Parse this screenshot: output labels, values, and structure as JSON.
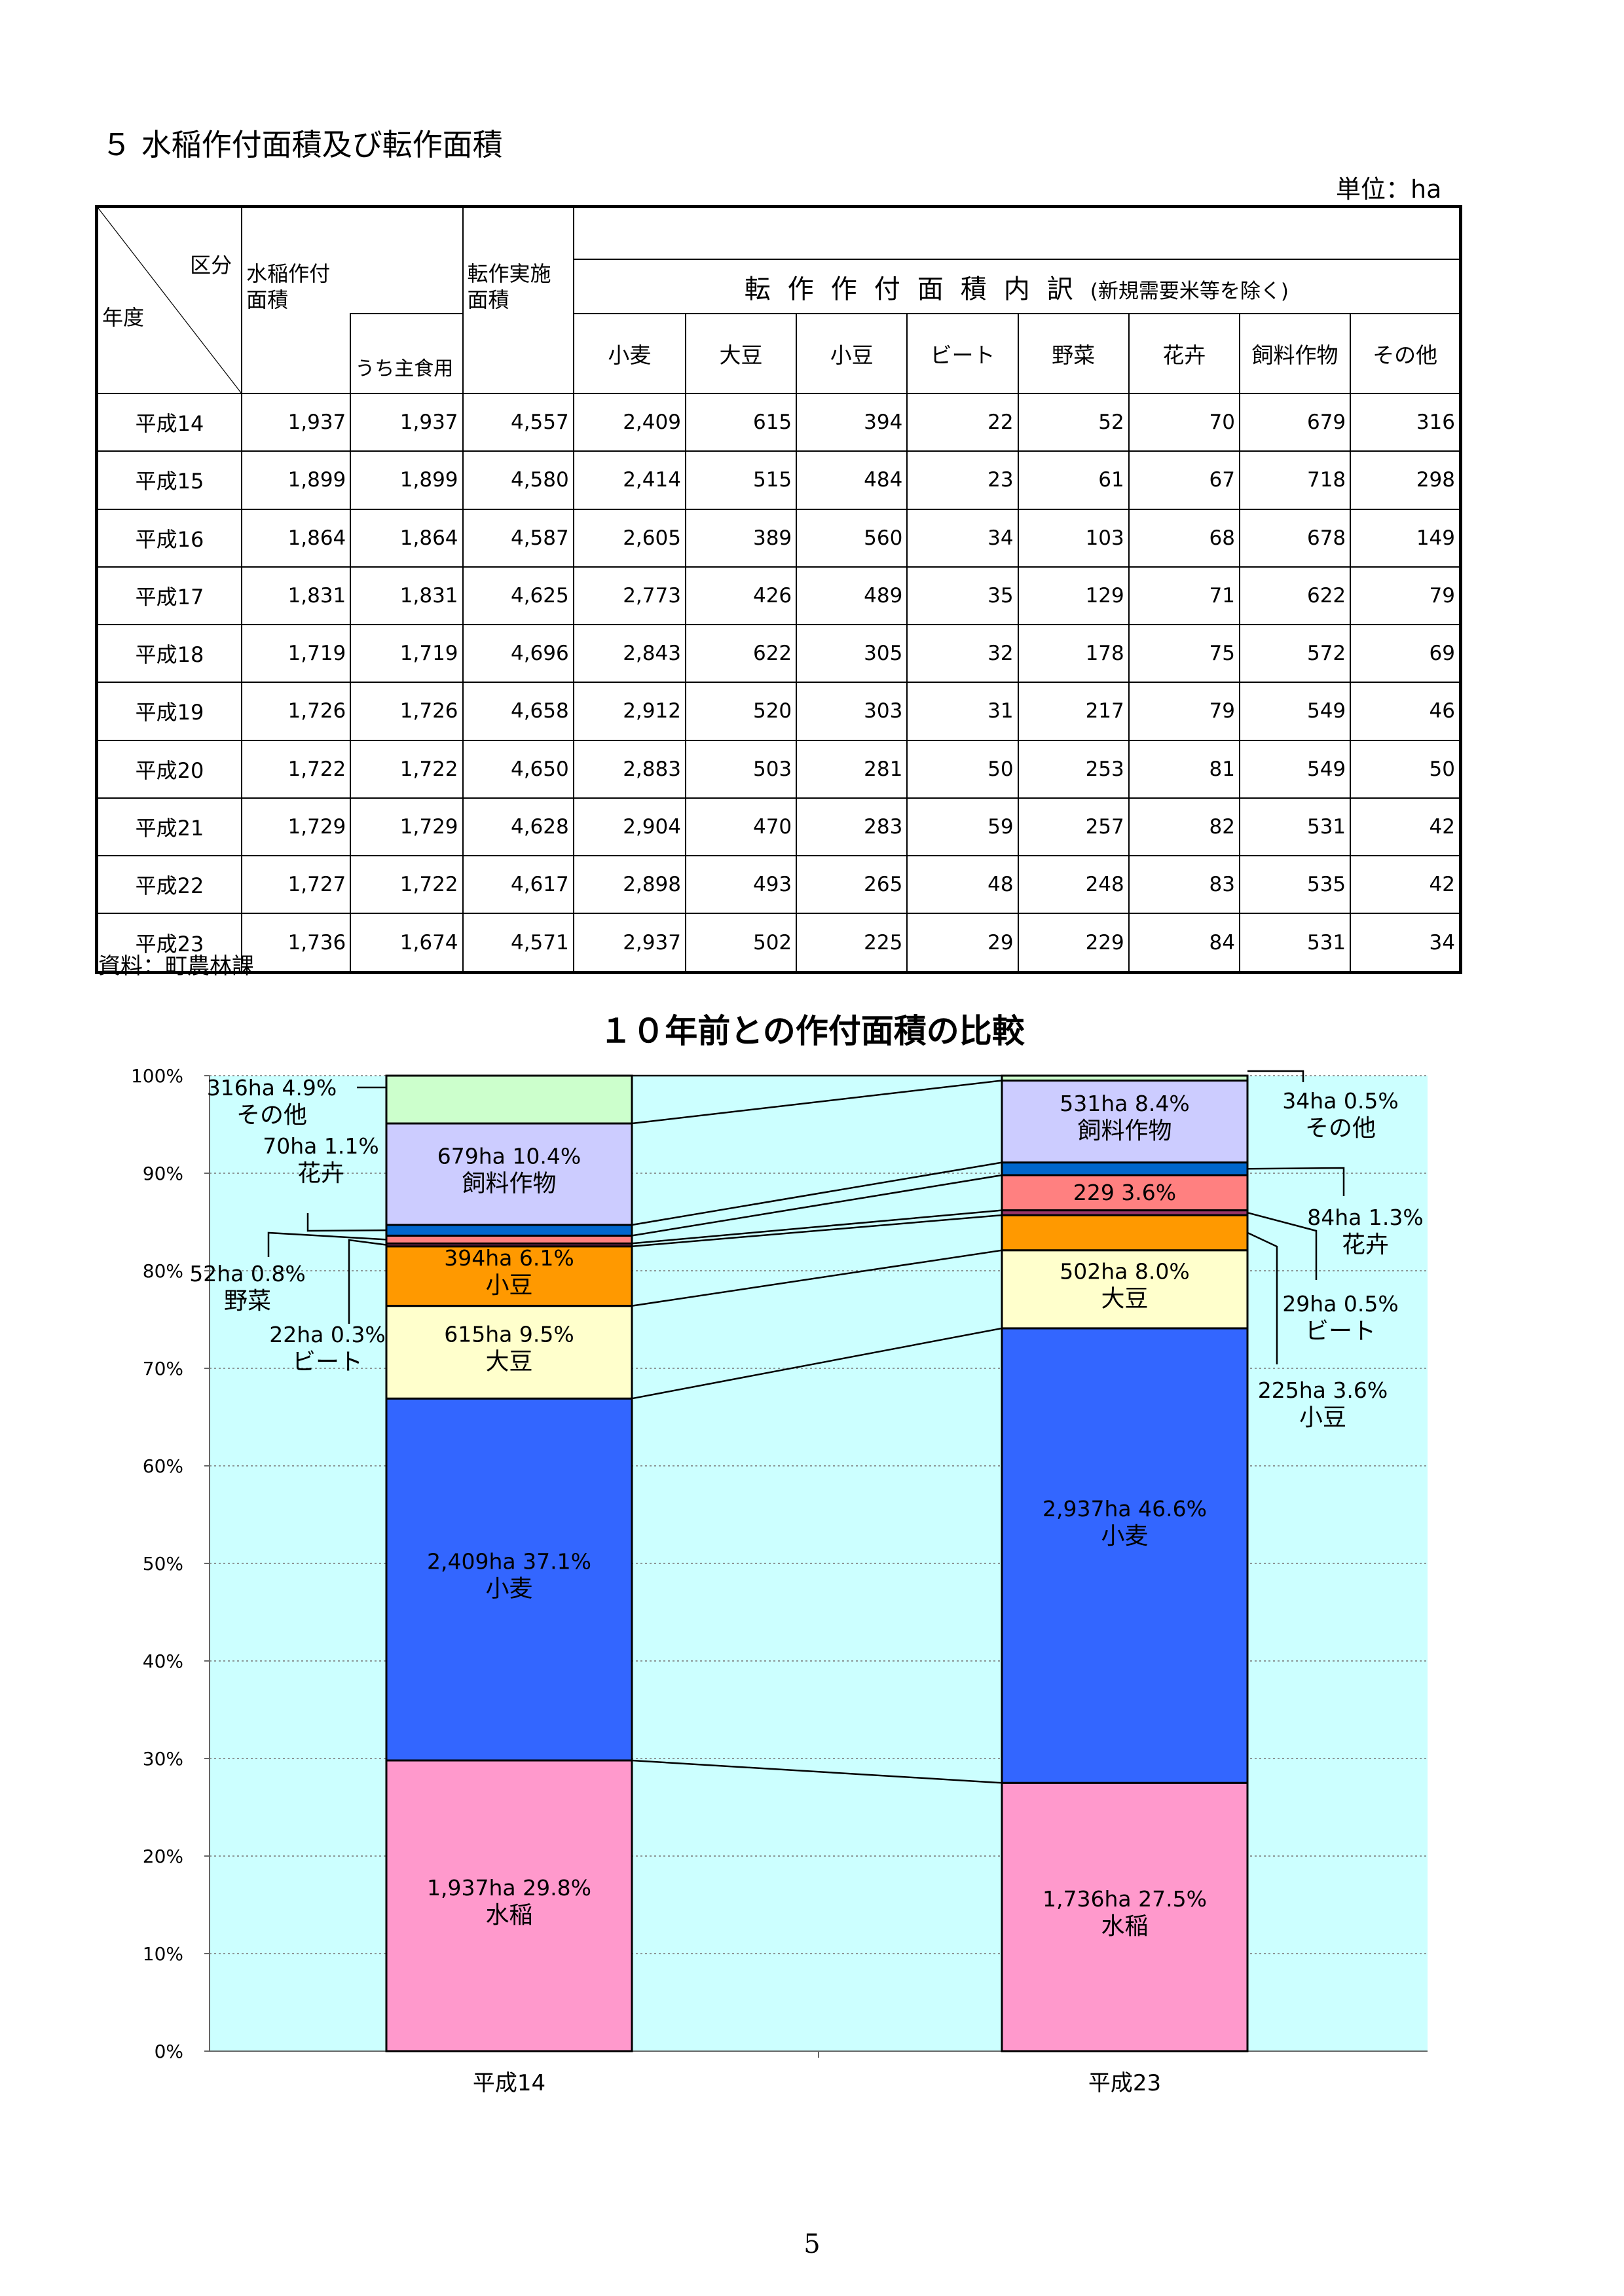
{
  "page": {
    "section_title": "５ 水稲作付面積及び転作面積",
    "unit": "単位：ha",
    "source": "資料：町農林課",
    "page_number": "5"
  },
  "table": {
    "corner_top": "区分",
    "corner_bottom": "年度",
    "col_suito": "水稲作付\n面積",
    "col_uchi": "うち主食用",
    "col_tensaku_total": "転作実施\n面積",
    "tensaku_header": "転作作付面積内訳",
    "tensaku_note": "(新規需要米等を除く)",
    "crops": [
      "小麦",
      "大豆",
      "小豆",
      "ビート",
      "野菜",
      "花卉",
      "飼料作物",
      "その他"
    ],
    "rows": [
      {
        "year": "平成14",
        "values": [
          "1,937",
          "1,937",
          "4,557",
          "2,409",
          "615",
          "394",
          "22",
          "52",
          "70",
          "679",
          "316"
        ]
      },
      {
        "year": "平成15",
        "values": [
          "1,899",
          "1,899",
          "4,580",
          "2,414",
          "515",
          "484",
          "23",
          "61",
          "67",
          "718",
          "298"
        ]
      },
      {
        "year": "平成16",
        "values": [
          "1,864",
          "1,864",
          "4,587",
          "2,605",
          "389",
          "560",
          "34",
          "103",
          "68",
          "678",
          "149"
        ]
      },
      {
        "year": "平成17",
        "values": [
          "1,831",
          "1,831",
          "4,625",
          "2,773",
          "426",
          "489",
          "35",
          "129",
          "71",
          "622",
          "79"
        ]
      },
      {
        "year": "平成18",
        "values": [
          "1,719",
          "1,719",
          "4,696",
          "2,843",
          "622",
          "305",
          "32",
          "178",
          "75",
          "572",
          "69"
        ]
      },
      {
        "year": "平成19",
        "values": [
          "1,726",
          "1,726",
          "4,658",
          "2,912",
          "520",
          "303",
          "31",
          "217",
          "79",
          "549",
          "46"
        ]
      },
      {
        "year": "平成20",
        "values": [
          "1,722",
          "1,722",
          "4,650",
          "2,883",
          "503",
          "281",
          "50",
          "253",
          "81",
          "549",
          "50"
        ]
      },
      {
        "year": "平成21",
        "values": [
          "1,729",
          "1,729",
          "4,628",
          "2,904",
          "470",
          "283",
          "59",
          "257",
          "82",
          "531",
          "42"
        ]
      },
      {
        "year": "平成22",
        "values": [
          "1,727",
          "1,722",
          "4,617",
          "2,898",
          "493",
          "265",
          "48",
          "248",
          "83",
          "535",
          "42"
        ]
      },
      {
        "year": "平成23",
        "values": [
          "1,736",
          "1,674",
          "4,571",
          "2,937",
          "502",
          "225",
          "29",
          "229",
          "84",
          "531",
          "34"
        ]
      }
    ]
  },
  "chart_data": {
    "type": "bar",
    "stacked": true,
    "title": "１０年前との作付面積の比較",
    "categories": [
      "平成14",
      "平成23"
    ],
    "ylim": [
      0,
      100
    ],
    "yticks": [
      "0%",
      "10%",
      "20%",
      "30%",
      "40%",
      "50%",
      "60%",
      "70%",
      "80%",
      "90%",
      "100%"
    ],
    "grid": true,
    "series": [
      {
        "name": "水稲",
        "color": "#ff99cc",
        "values": [
          29.8,
          27.5
        ],
        "labels": [
          "1,937ha  29.8%",
          "1,736ha  27.5%"
        ]
      },
      {
        "name": "小麦",
        "color": "#3366ff",
        "values": [
          37.1,
          46.6
        ],
        "labels": [
          "2,409ha  37.1%",
          "2,937ha  46.6%"
        ]
      },
      {
        "name": "大豆",
        "color": "#ffffcc",
        "values": [
          9.5,
          8.0
        ],
        "labels": [
          "615ha  9.5%",
          "502ha  8.0%"
        ]
      },
      {
        "name": "小豆",
        "color": "#ff9900",
        "values": [
          6.1,
          3.6
        ],
        "labels": [
          "394ha  6.1%",
          "225ha  3.6%"
        ]
      },
      {
        "name": "ビート",
        "color": "#993366",
        "values": [
          0.3,
          0.5
        ],
        "labels": [
          "22ha  0.3%",
          "29ha  0.5%"
        ]
      },
      {
        "name": "野菜",
        "color": "#ff8080",
        "values": [
          0.8,
          3.6
        ],
        "labels": [
          "52ha  0.8%",
          "229  3.6%"
        ]
      },
      {
        "name": "花卉",
        "color": "#0066cc",
        "values": [
          1.1,
          1.3
        ],
        "labels": [
          "70ha  1.1%",
          "84ha  1.3%"
        ]
      },
      {
        "name": "飼料作物",
        "color": "#ccccff",
        "values": [
          10.4,
          8.4
        ],
        "labels": [
          "679ha  10.4%",
          "531ha  8.4%"
        ]
      },
      {
        "name": "その他",
        "color": "#ccffcc",
        "values": [
          4.9,
          0.5
        ],
        "labels": [
          "316ha  4.9%",
          "34ha  0.5%"
        ]
      }
    ],
    "plot_background": "#ccffff"
  }
}
